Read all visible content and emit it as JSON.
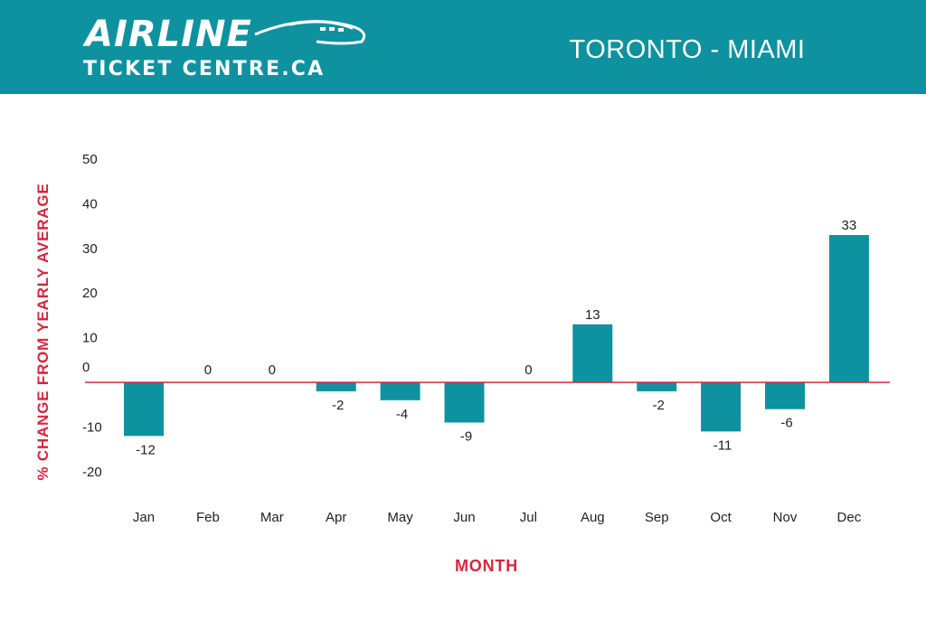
{
  "header": {
    "logo_line1": "AIRLINE",
    "logo_line2": "TICKET CENTRE.CA",
    "route_title": "TORONTO - MIAMI"
  },
  "colors": {
    "header_bg": "#0f929f",
    "bar": "#0f929f",
    "zero_line": "#d7263d",
    "axis_label": "#d7263d",
    "text": "#222222"
  },
  "chart_data": {
    "type": "bar",
    "categories": [
      "Jan",
      "Feb",
      "Mar",
      "Apr",
      "May",
      "Jun",
      "Jul",
      "Aug",
      "Sep",
      "Oct",
      "Nov",
      "Dec"
    ],
    "values": [
      -12,
      0,
      0,
      -2,
      -4,
      -9,
      0,
      13,
      -2,
      -11,
      -6,
      33
    ],
    "data_labels": [
      "-12",
      "0",
      "0",
      "-2",
      "-4",
      "-9",
      "0",
      "13",
      "-2",
      "-11",
      "-6",
      "33"
    ],
    "yticks": [
      50,
      40,
      30,
      20,
      10,
      0,
      -10,
      -20
    ],
    "ylim": [
      -20,
      50
    ],
    "xlabel": "MONTH",
    "ylabel": "% CHANGE FROM YEARLY AVERAGE",
    "grid": false
  }
}
